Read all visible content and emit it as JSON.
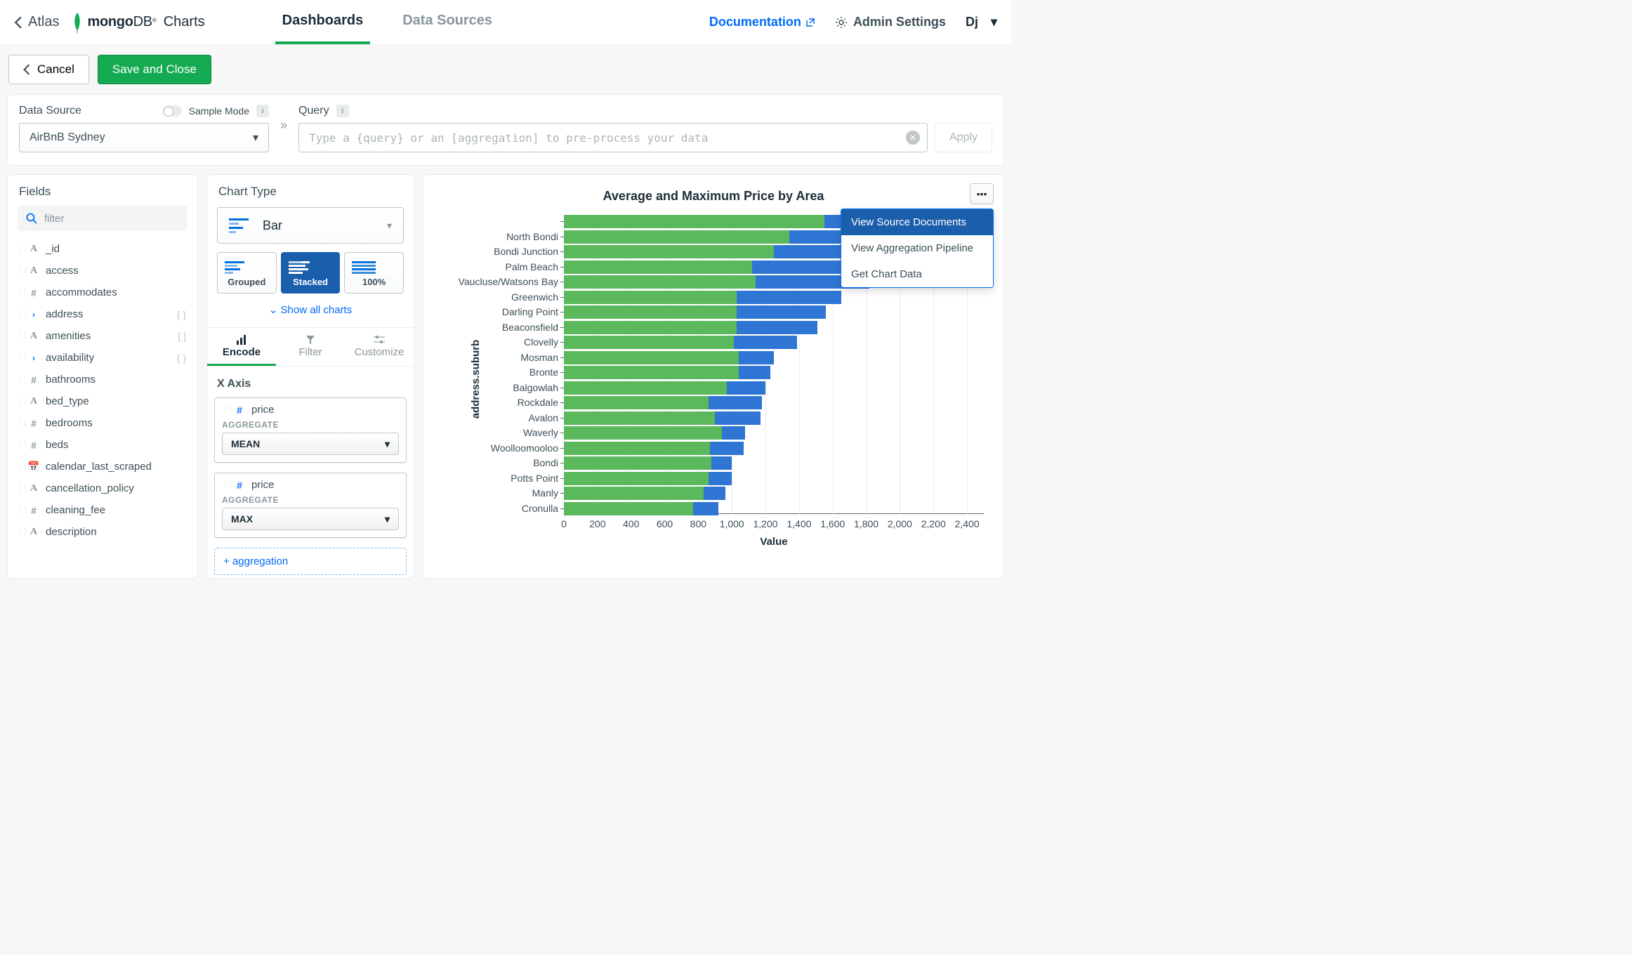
{
  "topbar": {
    "back": "Atlas",
    "brand_mongo": "mongo",
    "brand_db": "DB",
    "brand_charts": "Charts",
    "tabs": {
      "dashboards": "Dashboards",
      "datasources": "Data Sources"
    },
    "documentation": "Documentation",
    "admin": "Admin Settings",
    "user": "Dj"
  },
  "actions": {
    "cancel": "Cancel",
    "save": "Save and Close"
  },
  "config": {
    "data_source_label": "Data Source",
    "data_source_value": "AirBnB Sydney",
    "sample_mode": "Sample Mode",
    "query_label": "Query",
    "query_placeholder": "Type a {query} or an [aggregation] to pre-process your data",
    "apply": "Apply"
  },
  "fields_panel": {
    "title": "Fields",
    "filter_placeholder": "filter",
    "items": [
      {
        "type": "A",
        "name": "_id",
        "suffix": ""
      },
      {
        "type": "A",
        "name": "access",
        "suffix": ""
      },
      {
        "type": "#",
        "name": "accommodates",
        "suffix": ""
      },
      {
        "type": "chev",
        "name": "address",
        "suffix": "{ }"
      },
      {
        "type": "A",
        "name": "amenities",
        "suffix": "[ ]"
      },
      {
        "type": "chev",
        "name": "availability",
        "suffix": "{ }"
      },
      {
        "type": "#",
        "name": "bathrooms",
        "suffix": ""
      },
      {
        "type": "A",
        "name": "bed_type",
        "suffix": ""
      },
      {
        "type": "#",
        "name": "bedrooms",
        "suffix": ""
      },
      {
        "type": "#",
        "name": "beds",
        "suffix": ""
      },
      {
        "type": "cal",
        "name": "calendar_last_scraped",
        "suffix": ""
      },
      {
        "type": "A",
        "name": "cancellation_policy",
        "suffix": ""
      },
      {
        "type": "#",
        "name": "cleaning_fee",
        "suffix": ""
      },
      {
        "type": "A",
        "name": "description",
        "suffix": ""
      }
    ]
  },
  "chart_type": {
    "title": "Chart Type",
    "selected": "Bar",
    "variants": {
      "grouped": "Grouped",
      "stacked": "Stacked",
      "hundred": "100%"
    },
    "show_all": "Show all charts"
  },
  "enc_tabs": {
    "encode": "Encode",
    "filter": "Filter",
    "customize": "Customize"
  },
  "encode": {
    "x_axis": "X Axis",
    "agg_label": "AGGREGATE",
    "field": "price",
    "agg1": "MEAN",
    "agg2": "MAX",
    "add": "+ aggregation"
  },
  "chart": {
    "title": "Average and Maximum Price by Area",
    "y_axis_title": "address.suburb",
    "x_axis_title": "Value",
    "x_max": 2500,
    "x_ticks": [
      0,
      200,
      400,
      600,
      800,
      1000,
      1200,
      1400,
      1600,
      1800,
      2000,
      2200,
      2400
    ],
    "colors": {
      "mean": "#5cb85c",
      "max": "#2e75d4",
      "grid": "#e8edeb"
    },
    "bars": [
      {
        "label": "",
        "mean": 1550,
        "max": 2500
      },
      {
        "label": "North Bondi",
        "mean": 1340,
        "max": 2130
      },
      {
        "label": "Bondi Junction",
        "mean": 1250,
        "max": 1870
      },
      {
        "label": "Palm Beach",
        "mean": 1120,
        "max": 1830
      },
      {
        "label": "Vaucluse/Watsons Bay",
        "mean": 1140,
        "max": 1820
      },
      {
        "label": "Greenwich",
        "mean": 1030,
        "max": 1650
      },
      {
        "label": "Darling Point",
        "mean": 1030,
        "max": 1560
      },
      {
        "label": "Beaconsfield",
        "mean": 1030,
        "max": 1510
      },
      {
        "label": "Clovelly",
        "mean": 1010,
        "max": 1390
      },
      {
        "label": "Mosman",
        "mean": 1040,
        "max": 1250
      },
      {
        "label": "Bronte",
        "mean": 1040,
        "max": 1230
      },
      {
        "label": "Balgowlah",
        "mean": 970,
        "max": 1200
      },
      {
        "label": "Rockdale",
        "mean": 860,
        "max": 1180
      },
      {
        "label": "Avalon",
        "mean": 900,
        "max": 1170
      },
      {
        "label": "Waverly",
        "mean": 940,
        "max": 1080
      },
      {
        "label": "Woolloomooloo",
        "mean": 870,
        "max": 1070
      },
      {
        "label": "Bondi",
        "mean": 880,
        "max": 1000
      },
      {
        "label": "Potts Point",
        "mean": 860,
        "max": 1000
      },
      {
        "label": "Manly",
        "mean": 830,
        "max": 960
      },
      {
        "label": "Cronulla",
        "mean": 770,
        "max": 920
      }
    ]
  },
  "dropdown": {
    "view_source": "View Source Documents",
    "view_pipeline": "View Aggregation Pipeline",
    "get_data": "Get Chart Data"
  }
}
